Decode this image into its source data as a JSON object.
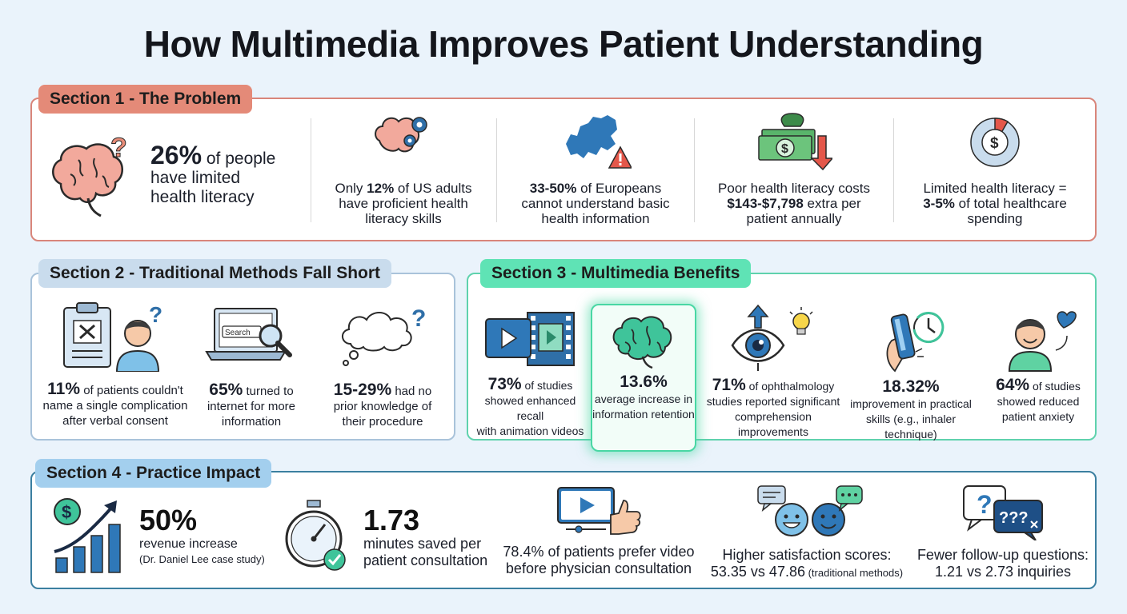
{
  "title": "How Multimedia Improves Patient Understanding",
  "section1": {
    "tag": "Section 1 - The Problem",
    "items": [
      {
        "icon": "brain-question-icon",
        "stat": "26%",
        "text_a": " of people",
        "text_b": "have limited",
        "text_c": "health literacy"
      },
      {
        "icon": "brain-gears-icon",
        "pre": "Only ",
        "stat": "12%",
        "post": " of US adults",
        "line2": "have proficient health",
        "line3": "literacy skills"
      },
      {
        "icon": "europe-warning-icon",
        "stat": "33-50%",
        "post": " of Europeans",
        "line2": "cannot understand basic",
        "line3": "health information"
      },
      {
        "icon": "money-down-icon",
        "line1": "Poor health literacy costs",
        "stat": "$143-$7,798",
        "post": " extra per",
        "line3": "patient annually"
      },
      {
        "icon": "dollar-donut-icon",
        "line1": "Limited health literacy =",
        "stat": "3-5%",
        "post": " of total healthcare",
        "line3": "spending"
      }
    ]
  },
  "section2": {
    "tag": "Section 2 - Traditional Methods Fall Short",
    "items": [
      {
        "icon": "clipboard-confused-person-icon",
        "stat": "11%",
        "post": " of patients couldn't",
        "line2": "name a single complication",
        "line3": "after verbal consent"
      },
      {
        "icon": "laptop-search-icon",
        "search_label": "Search",
        "stat": "65%",
        "post": " turned to",
        "line2": "internet for more",
        "line3": "information"
      },
      {
        "icon": "thought-cloud-question-icon",
        "stat": "15-29%",
        "post": " had no",
        "line2": "prior knowledge of",
        "line3": "their procedure"
      }
    ]
  },
  "section3": {
    "tag": "Section 3 - Multimedia Benefits",
    "items": [
      {
        "icon": "video-film-icon",
        "stat": "73%",
        "post": " of studies",
        "line2": "showed enhanced recall",
        "line3": "with animation videos"
      },
      {
        "icon": "brain-icon",
        "stat": "13.6%",
        "line2": "average increase in",
        "line3": "information retention"
      },
      {
        "icon": "eye-lightbulb-icon",
        "stat": "71%",
        "post": " of ophthalmology",
        "line2": "studies reported significant",
        "line3": "comprehension improvements"
      },
      {
        "icon": "inhaler-clock-icon",
        "stat": "18.32%",
        "line2": "improvement in practical",
        "line3": "skills (e.g., inhaler technique)"
      },
      {
        "icon": "happy-person-heart-icon",
        "stat": "64%",
        "post": " of studies",
        "line2": "showed reduced",
        "line3": "patient anxiety"
      }
    ]
  },
  "section4": {
    "tag": "Section 4 - Practice Impact",
    "items": [
      {
        "icon": "dollar-growth-chart-icon",
        "stat": "50%",
        "line2": "revenue increase",
        "line3": "(Dr. Daniel Lee case study)"
      },
      {
        "icon": "stopwatch-check-icon",
        "stat": "1.73",
        "line2": "minutes saved per",
        "line3": "patient consultation"
      },
      {
        "icon": "video-thumbs-up-icon",
        "line1": "78.4% of patients prefer video",
        "line2": "before physician consultation"
      },
      {
        "icon": "smiley-chat-icon",
        "line1": "Higher satisfaction scores:",
        "line2": "53.35 vs 47.86",
        "line2_small": " (traditional methods)"
      },
      {
        "icon": "question-bubbles-icon",
        "line1": "Fewer follow-up questions:",
        "line2": "1.21 vs 2.73 inquiries"
      }
    ]
  }
}
